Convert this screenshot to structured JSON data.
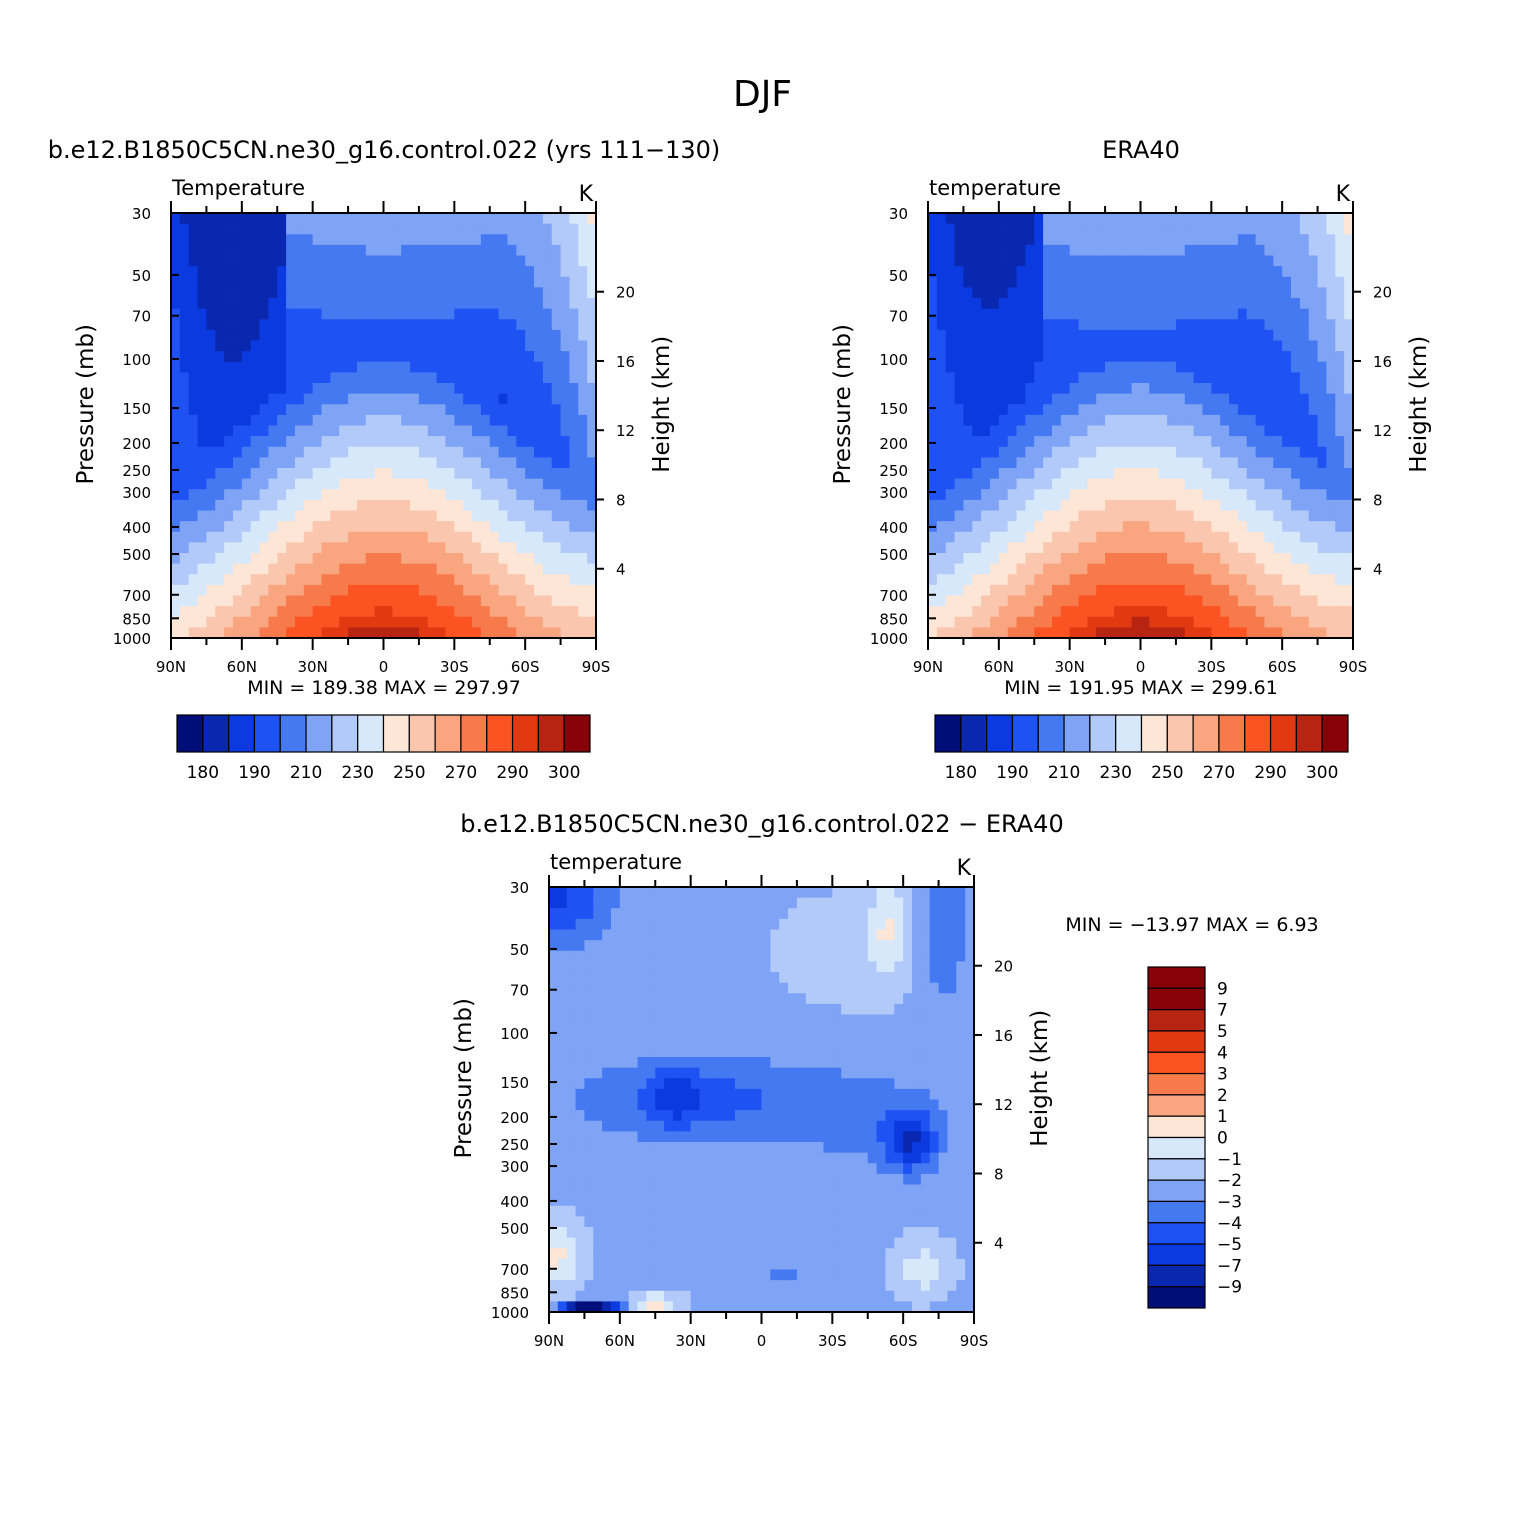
{
  "page_title": "DJF",
  "panels": [
    {
      "title": "b.e12.B1850C5CN.ne30_g16.control.022 (yrs 111−130)",
      "left_string": "Temperature",
      "units": "K",
      "stats": "MIN =  189.38   MAX =  297.97"
    },
    {
      "title": "ERA40",
      "left_string": "temperature",
      "units": "K",
      "stats": "MIN =  191.95   MAX =  299.61"
    },
    {
      "title": "b.e12.B1850C5CN.ne30_g16.control.022 − ERA40",
      "left_string": "temperature",
      "units": "K",
      "stats": "MIN = −13.97   MAX =    6.93"
    }
  ],
  "axes": {
    "ylabel_left": "Pressure (mb)",
    "ylabel_right": "Height (km)",
    "pressure_ticks": [
      "30",
      "50",
      "70",
      "100",
      "150",
      "200",
      "250",
      "300",
      "400",
      "500",
      "700",
      "850",
      "1000"
    ],
    "height_ticks": [
      "20",
      "16",
      "12",
      "8",
      "4"
    ],
    "lat_ticks": [
      "90N",
      "60N",
      "30N",
      "0",
      "30S",
      "60S",
      "90S"
    ]
  },
  "colorbars": {
    "abs_labels": [
      "180",
      "190",
      "210",
      "230",
      "250",
      "270",
      "290",
      "300"
    ],
    "diff_labels": [
      "9",
      "7",
      "5",
      "4",
      "3",
      "2",
      "1",
      "0",
      "−1",
      "−2",
      "−3",
      "−4",
      "−5",
      "−7",
      "−9"
    ]
  },
  "colors": {
    "abs_palette": [
      "#000e7a",
      "#0a27b0",
      "#0a3ae0",
      "#1f52f2",
      "#4579f2",
      "#7fa3f5",
      "#b2caf9",
      "#d8e8fb",
      "#fde6d6",
      "#fac7ae",
      "#f9a680",
      "#f77a4c",
      "#fb5422",
      "#e13a12",
      "#b82412",
      "#870208"
    ],
    "diff_palette": [
      "#870208",
      "#b82412",
      "#e13a12",
      "#fb5422",
      "#f77a4c",
      "#f9a680",
      "#fde6d6",
      "#d8e8fb",
      "#b2caf9",
      "#7fa3f5",
      "#4579f2",
      "#1f52f2",
      "#0a3ae0",
      "#0a27b0",
      "#000e7a"
    ]
  },
  "chart_data": [
    {
      "type": "heatmap",
      "title": "b.e12.B1850C5CN.ne30_g16.control.022 (yrs 111−130)",
      "variable": "Temperature",
      "units": "K",
      "xlabel": "",
      "ylabel": "Pressure (mb)",
      "ylabel_right": "Height (km)",
      "x": [
        "90N",
        "60N",
        "30N",
        "0",
        "30S",
        "60S",
        "90S"
      ],
      "y_levels_mb": [
        30,
        50,
        70,
        100,
        150,
        200,
        250,
        300,
        400,
        500,
        700,
        850,
        1000
      ],
      "min": 189.38,
      "max": 297.97,
      "contour_levels": [
        180,
        185,
        190,
        200,
        210,
        220,
        230,
        240,
        250,
        260,
        270,
        280,
        290,
        295,
        300
      ]
    },
    {
      "type": "heatmap",
      "title": "ERA40",
      "variable": "temperature",
      "units": "K",
      "xlabel": "",
      "ylabel": "Pressure (mb)",
      "ylabel_right": "Height (km)",
      "x": [
        "90N",
        "60N",
        "30N",
        "0",
        "30S",
        "60S",
        "90S"
      ],
      "y_levels_mb": [
        30,
        50,
        70,
        100,
        150,
        200,
        250,
        300,
        400,
        500,
        700,
        850,
        1000
      ],
      "min": 191.95,
      "max": 299.61,
      "contour_levels": [
        180,
        185,
        190,
        200,
        210,
        220,
        230,
        240,
        250,
        260,
        270,
        280,
        290,
        295,
        300
      ]
    },
    {
      "type": "heatmap",
      "title": "b.e12.B1850C5CN.ne30_g16.control.022 − ERA40",
      "variable": "temperature",
      "units": "K",
      "xlabel": "",
      "ylabel": "Pressure (mb)",
      "ylabel_right": "Height (km)",
      "x": [
        "90N",
        "60N",
        "30N",
        "0",
        "30S",
        "60S",
        "90S"
      ],
      "y_levels_mb": [
        30,
        50,
        70,
        100,
        150,
        200,
        250,
        300,
        400,
        500,
        700,
        850,
        1000
      ],
      "min": -13.97,
      "max": 6.93,
      "contour_levels": [
        -9,
        -7,
        -5,
        -4,
        -3,
        -2,
        -1,
        0,
        1,
        2,
        3,
        4,
        5,
        7,
        9
      ]
    }
  ]
}
